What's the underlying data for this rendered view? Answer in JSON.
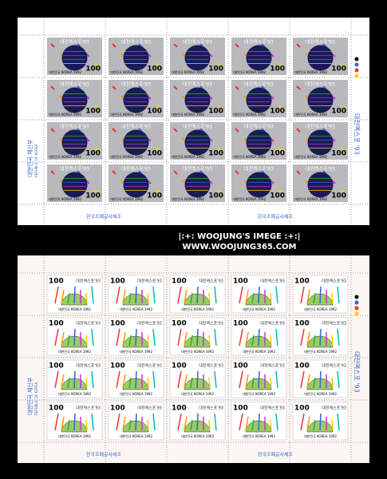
{
  "watermark": {
    "line1": "|:+: WOOJUNG'S IMEGE :+:|",
    "line2": "WWW.WOOJUNG365.COM"
  },
  "sheets": [
    {
      "stamp": {
        "title": "대전엑스포'93",
        "denomination": "100",
        "country": "대한민국 KOREA 1992"
      },
      "side_text": "대전엑스포 '93",
      "margin_left": "대한민국 체신부",
      "margin_left_en": "REPUBLIC OF KOREA",
      "margin_bottom": "한국조폐공사제조"
    },
    {
      "stamp": {
        "title": "대전엑스포'93",
        "denomination": "100",
        "country": "대한민국 KOREA 1992"
      },
      "side_text": "대전엑스포 '93",
      "margin_left": "대한민국 체신부",
      "margin_left_en": "REPUBLIC OF KOREA",
      "margin_bottom": "한국조폐공사제조"
    }
  ]
}
